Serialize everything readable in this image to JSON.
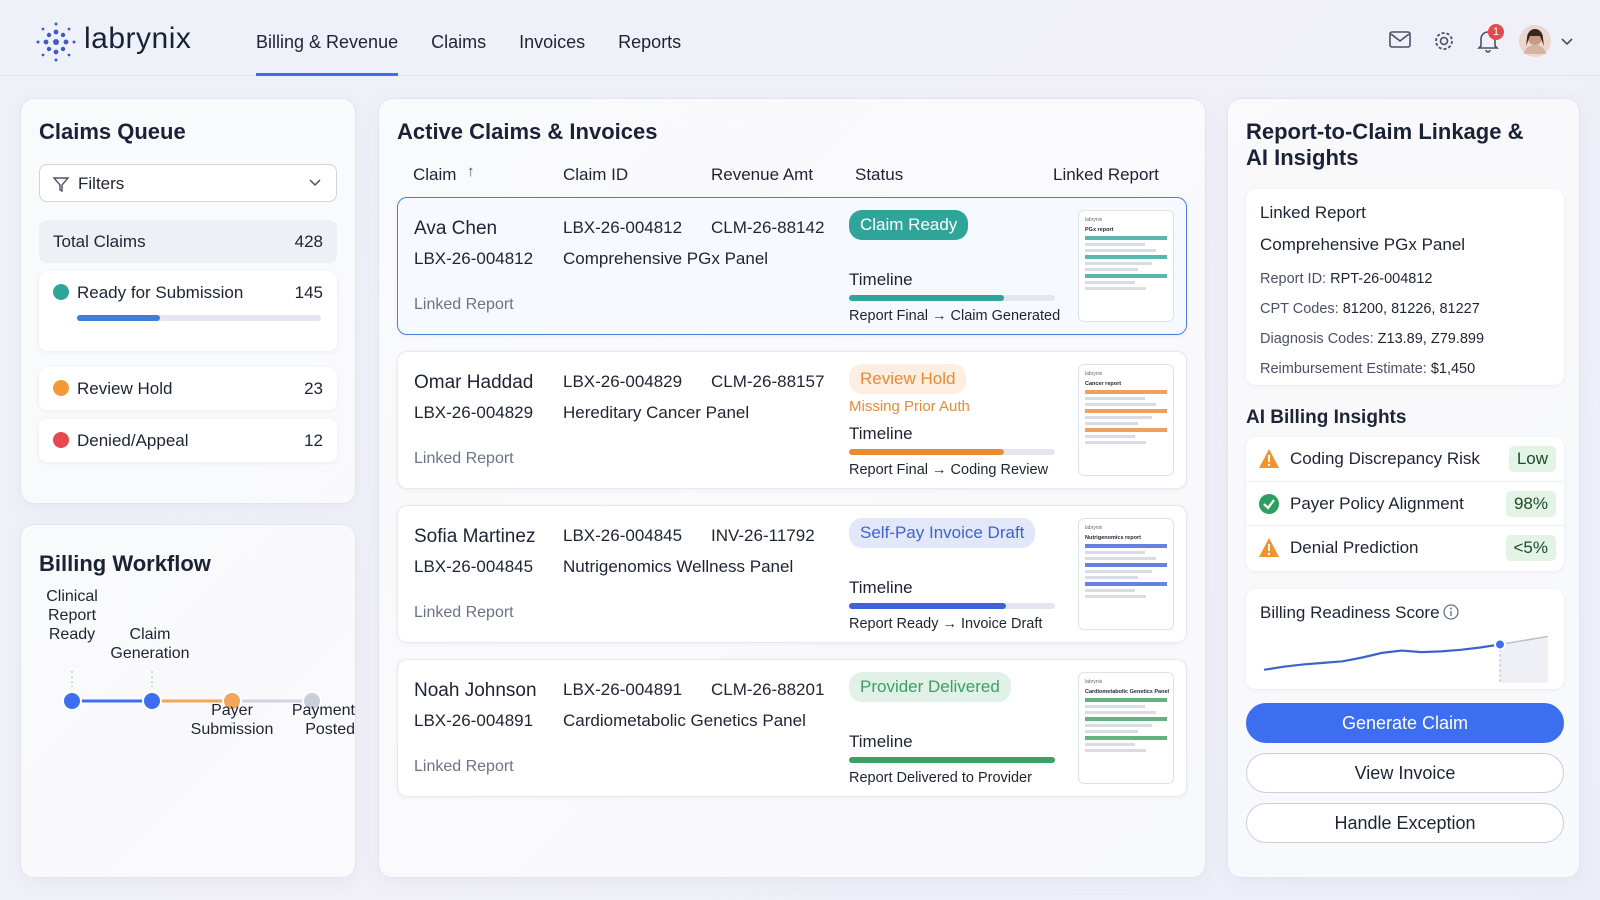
{
  "header": {
    "brand": "labrynix",
    "nav": [
      "Billing & Revenue",
      "Claims",
      "Invoices",
      "Reports"
    ],
    "active_nav": 0,
    "notifications": 1
  },
  "claims_queue": {
    "title": "Claims Queue",
    "filter": "Filters",
    "total": {
      "label": "Total Claims",
      "value": 428
    },
    "statuses": [
      {
        "label": "Ready for Submission",
        "value": 145,
        "color": "#2fa59a"
      },
      {
        "label": "Review Hold",
        "value": 23,
        "color": "#f29a38"
      },
      {
        "label": "Denied/Appeal",
        "value": 12,
        "color": "#e5484d"
      }
    ]
  },
  "billing_workflow": {
    "title": "Billing Workflow",
    "steps": [
      "Clinical Report Ready",
      "Claim Generation",
      "Payer Submission",
      "Payment Posted"
    ],
    "current_step": 2
  },
  "active_claims": {
    "title": "Active Claims & Invoices",
    "columns": [
      "Claim",
      "Claim ID",
      "Revenue Amt",
      "Status",
      "Linked Report"
    ],
    "row_label": "Linked Report",
    "timeline_label": "Timeline",
    "selected_row": 0,
    "rows": [
      {
        "patient": "Ava Chen",
        "lab_id": "LBX-26-004812",
        "ref_id": "CLM-26-88142",
        "panel": "Comprehensive PGx Panel",
        "status": "Claim Ready",
        "color": "#2fa59a",
        "timeline": "Report Final → Claim Generated",
        "progress": 75,
        "report_title": "PGx report"
      },
      {
        "patient": "Omar Haddad",
        "lab_id": "LBX-26-004829",
        "ref_id": "CLM-26-88157",
        "panel": "Hereditary Cancer Panel",
        "status": "Review Hold",
        "note": "Missing Prior Auth",
        "color": "#e98a35",
        "timeline": "Report Final → Coding Review",
        "progress": 75,
        "report_title": "Cancer report"
      },
      {
        "patient": "Sofia Martinez",
        "lab_id": "LBX-26-004845",
        "ref_id": "INV-26-11792",
        "panel": "Nutrigenomics Wellness Panel",
        "status": "Self-Pay Invoice Draft",
        "color": "#3d63d6",
        "timeline": "Report Ready → Invoice Draft",
        "progress": 76,
        "report_title": "Nutrigenomics report"
      },
      {
        "patient": "Noah Johnson",
        "lab_id": "LBX-26-004891",
        "ref_id": "CLM-26-88201",
        "panel": "Cardiometabolic Genetics Panel",
        "status": "Provider Delivered",
        "color": "#3aa063",
        "timeline": "Report Delivered to Provider",
        "progress": 100,
        "report_title": "Cardiometabolic Genetics Panel"
      }
    ]
  },
  "insights": {
    "title": "Report-to-Claim Linkage & AI Insights",
    "linked_report": {
      "heading": "Linked Report",
      "name": "Comprehensive PGx Panel",
      "fields": [
        {
          "label": "Report ID:",
          "value": "RPT-26-004812"
        },
        {
          "label": "CPT Codes:",
          "value": "81200, 81226, 81227"
        },
        {
          "label": "Diagnosis Codes:",
          "value": "Z13.89, Z79.899"
        },
        {
          "label": "Reimbursement Estimate:",
          "value": "$1,450"
        }
      ]
    },
    "ai_title": "AI Billing Insights",
    "ai_items": [
      {
        "label": "Coding Discrepancy Risk",
        "value": "Low",
        "icon": "warning"
      },
      {
        "label": "Payer Policy Alignment",
        "value": "98%",
        "icon": "check"
      },
      {
        "label": "Denial Prediction",
        "value": "<5%",
        "icon": "warning"
      }
    ],
    "readiness": {
      "title": "Billing Readiness Score",
      "trend": [
        12,
        16,
        19,
        21,
        23,
        28,
        34,
        37,
        35,
        36,
        38,
        41,
        45
      ],
      "ylim": [
        0,
        100
      ]
    },
    "actions": [
      "Generate Claim",
      "View Invoice",
      "Handle Exception"
    ]
  }
}
